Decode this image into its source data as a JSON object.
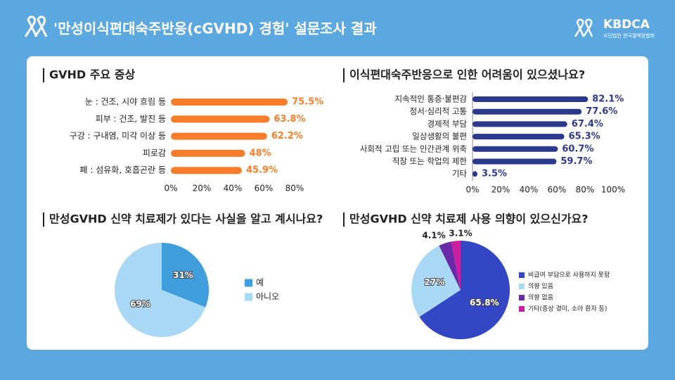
{
  "header": {
    "title": "'만성이식편대숙주반응(cGVHD) 경험' 설문조사 결과",
    "logo_text": "KBDCA",
    "logo_subtitle": "사단법인 한국혈액암협회"
  },
  "chart_data": [
    {
      "type": "bar",
      "orientation": "horizontal",
      "title": "GVHD 주요 증상",
      "categories": [
        "눈 : 건조, 시야 흐림 등",
        "피부 : 건조, 발진 등",
        "구강 : 구내염, 미각 이상 등",
        "피로감",
        "폐 : 섬유화, 호흡곤란 등"
      ],
      "values": [
        75.5,
        63.8,
        62.2,
        48,
        45.9
      ],
      "value_labels": [
        "75.5%",
        "63.8%",
        "62.2%",
        "48%",
        "45.9%"
      ],
      "color": "#f97d2a",
      "xlim": [
        0,
        80
      ],
      "xticks": [
        {
          "value": 0,
          "label": "0%"
        },
        {
          "value": 20,
          "label": "20%"
        },
        {
          "value": 40,
          "label": "40%"
        },
        {
          "value": 60,
          "label": "60%"
        },
        {
          "value": 80,
          "label": "80%"
        }
      ]
    },
    {
      "type": "bar",
      "orientation": "horizontal",
      "title": "이식편대숙주반응으로 인한 어려움이 있으셨나요?",
      "categories": [
        "지속적인 통증·불편감",
        "정서·심리적 고통",
        "경제적 부담",
        "일상생활의 불편",
        "사회적 고립 또는 인간관계 위축",
        "직장 또는 학업의 제한",
        "기타"
      ],
      "values": [
        82.1,
        77.6,
        67.4,
        65.3,
        60.7,
        59.7,
        3.5
      ],
      "value_labels": [
        "82.1%",
        "77.6%",
        "67.4%",
        "65.3%",
        "60.7%",
        "59.7%",
        "3.5%"
      ],
      "color": "#2b3a8c",
      "xlim": [
        0,
        100
      ],
      "xticks": [
        {
          "value": 0,
          "label": "0%"
        },
        {
          "value": 20,
          "label": "20%"
        },
        {
          "value": 40,
          "label": "40%"
        },
        {
          "value": 60,
          "label": "60%"
        },
        {
          "value": 80,
          "label": "80%"
        },
        {
          "value": 100,
          "label": "100%"
        }
      ]
    },
    {
      "type": "pie",
      "title": "만성GVHD 신약 치료제가 있다는 사실을 알고 계시나요?",
      "categories": [
        "예",
        "아니오"
      ],
      "values": [
        31,
        69
      ],
      "value_labels": [
        "31%",
        "69%"
      ],
      "colors": [
        "#3f9edb",
        "#a9d8f5"
      ]
    },
    {
      "type": "pie",
      "title": "만성GVHD  신약 치료제 사용 의향이 있으신가요?",
      "categories": [
        "비급여 부담으로 사용하지 못함",
        "의향 있음",
        "의향 없음",
        "기타(증상 경미, 소아 환자 등)"
      ],
      "values": [
        65.8,
        27,
        4.1,
        3.1
      ],
      "value_labels": [
        "65.8%",
        "27%",
        "4.1%",
        "3.1%"
      ],
      "colors": [
        "#3346c4",
        "#a9d8f5",
        "#6a2aa8",
        "#c81fa0"
      ]
    }
  ]
}
